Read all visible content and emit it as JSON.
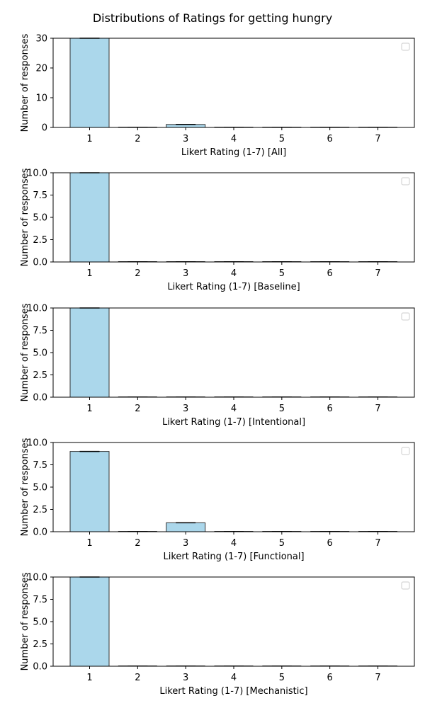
{
  "figure": {
    "title": "Distributions of Ratings for getting hungry",
    "colors": {
      "bar_fill": "#abd7eb",
      "bar_edge": "#333333",
      "axis": "#000000"
    }
  },
  "chart_data": [
    {
      "type": "bar",
      "categories": [
        "1",
        "2",
        "3",
        "4",
        "5",
        "6",
        "7"
      ],
      "values": [
        30,
        0,
        1,
        0,
        0,
        0,
        0
      ],
      "xlabel": "Likert Rating (1-7) [All]",
      "ylabel": "Number of responses",
      "ylim": [
        0,
        30
      ],
      "yticks": [
        "0",
        "10",
        "20",
        "30"
      ],
      "legend": "top-right (empty)"
    },
    {
      "type": "bar",
      "categories": [
        "1",
        "2",
        "3",
        "4",
        "5",
        "6",
        "7"
      ],
      "values": [
        10,
        0,
        0,
        0,
        0,
        0,
        0
      ],
      "xlabel": "Likert Rating (1-7) [Baseline]",
      "ylabel": "Number of responses",
      "ylim": [
        0,
        10
      ],
      "yticks": [
        "0.0",
        "2.5",
        "5.0",
        "7.5",
        "10.0"
      ],
      "legend": "top-right (empty)"
    },
    {
      "type": "bar",
      "categories": [
        "1",
        "2",
        "3",
        "4",
        "5",
        "6",
        "7"
      ],
      "values": [
        10,
        0,
        0,
        0,
        0,
        0,
        0
      ],
      "xlabel": "Likert Rating (1-7) [Intentional]",
      "ylabel": "Number of responses",
      "ylim": [
        0,
        10
      ],
      "yticks": [
        "0.0",
        "2.5",
        "5.0",
        "7.5",
        "10.0"
      ],
      "legend": "top-right (empty)"
    },
    {
      "type": "bar",
      "categories": [
        "1",
        "2",
        "3",
        "4",
        "5",
        "6",
        "7"
      ],
      "values": [
        9,
        0,
        1,
        0,
        0,
        0,
        0
      ],
      "xlabel": "Likert Rating (1-7) [Functional]",
      "ylabel": "Number of responses",
      "ylim": [
        0,
        10
      ],
      "yticks": [
        "0.0",
        "2.5",
        "5.0",
        "7.5",
        "10.0"
      ],
      "legend": "top-right (empty)"
    },
    {
      "type": "bar",
      "categories": [
        "1",
        "2",
        "3",
        "4",
        "5",
        "6",
        "7"
      ],
      "values": [
        10,
        0,
        0,
        0,
        0,
        0,
        0
      ],
      "xlabel": "Likert Rating (1-7) [Mechanistic]",
      "ylabel": "Number of responses",
      "ylim": [
        0,
        10
      ],
      "yticks": [
        "0.0",
        "2.5",
        "5.0",
        "7.5",
        "10.0"
      ],
      "legend": "top-right (empty)"
    }
  ]
}
